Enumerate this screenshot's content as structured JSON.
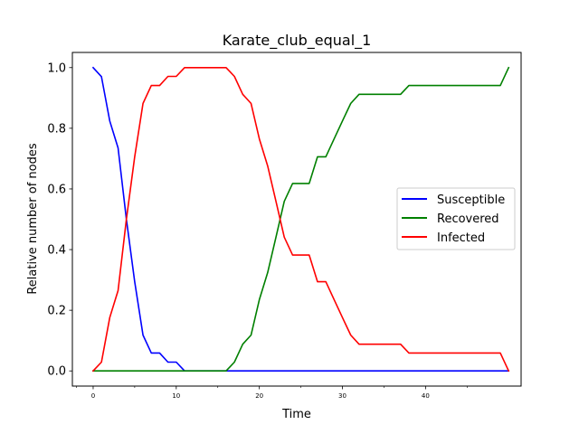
{
  "chart_data": {
    "type": "line",
    "title": "Karate_club_equal_1",
    "xlabel": "Time",
    "ylabel": "Relative number of nodes",
    "xlim": [
      -2.5,
      51.5
    ],
    "ylim": [
      -0.05,
      1.05
    ],
    "x_major_ticks": [
      0,
      10,
      20,
      30,
      40
    ],
    "x_minor_ticks": [
      -2,
      5,
      15,
      25,
      35,
      45
    ],
    "x_tick_labels": [
      "0",
      "10",
      "20",
      "30",
      "40"
    ],
    "y_ticks": [
      0.0,
      0.2,
      0.4,
      0.6,
      0.8,
      1.0
    ],
    "y_tick_labels": [
      "0.0",
      "0.2",
      "0.4",
      "0.6",
      "0.8",
      "1.0"
    ],
    "grid": false,
    "legend_position": "center-right",
    "x": [
      0,
      1,
      2,
      3,
      4,
      5,
      6,
      7,
      8,
      9,
      10,
      11,
      12,
      13,
      14,
      15,
      16,
      17,
      18,
      19,
      20,
      21,
      22,
      23,
      24,
      25,
      26,
      27,
      28,
      29,
      30,
      31,
      32,
      33,
      34,
      35,
      36,
      37,
      38,
      39,
      40,
      41,
      42,
      43,
      44,
      45,
      46,
      47,
      48,
      49,
      50
    ],
    "series": [
      {
        "name": "Susceptible",
        "color": "#0000ff",
        "values": [
          1.0,
          0.97,
          0.824,
          0.735,
          0.5,
          0.294,
          0.118,
          0.059,
          0.059,
          0.029,
          0.029,
          0,
          0,
          0,
          0,
          0,
          0,
          0,
          0,
          0,
          0,
          0,
          0,
          0,
          0,
          0,
          0,
          0,
          0,
          0,
          0,
          0,
          0,
          0,
          0,
          0,
          0,
          0,
          0,
          0,
          0,
          0,
          0,
          0,
          0,
          0,
          0,
          0,
          0,
          0,
          0
        ]
      },
      {
        "name": "Recovered",
        "color": "#008000",
        "values": [
          0,
          0,
          0,
          0,
          0,
          0,
          0,
          0,
          0,
          0,
          0,
          0,
          0,
          0,
          0,
          0,
          0,
          0.029,
          0.088,
          0.118,
          0.235,
          0.324,
          0.441,
          0.559,
          0.618,
          0.618,
          0.618,
          0.706,
          0.706,
          0.765,
          0.824,
          0.882,
          0.912,
          0.912,
          0.912,
          0.912,
          0.912,
          0.912,
          0.941,
          0.941,
          0.941,
          0.941,
          0.941,
          0.941,
          0.941,
          0.941,
          0.941,
          0.941,
          0.941,
          0.941,
          1.0
        ]
      },
      {
        "name": "Infected",
        "color": "#ff0000",
        "values": [
          0,
          0.029,
          0.176,
          0.265,
          0.5,
          0.706,
          0.882,
          0.941,
          0.941,
          0.971,
          0.971,
          1.0,
          1.0,
          1.0,
          1.0,
          1.0,
          1.0,
          0.971,
          0.912,
          0.882,
          0.765,
          0.676,
          0.559,
          0.441,
          0.382,
          0.382,
          0.382,
          0.294,
          0.294,
          0.235,
          0.176,
          0.118,
          0.088,
          0.088,
          0.088,
          0.088,
          0.088,
          0.088,
          0.059,
          0.059,
          0.059,
          0.059,
          0.059,
          0.059,
          0.059,
          0.059,
          0.059,
          0.059,
          0.059,
          0.059,
          0
        ]
      }
    ]
  }
}
